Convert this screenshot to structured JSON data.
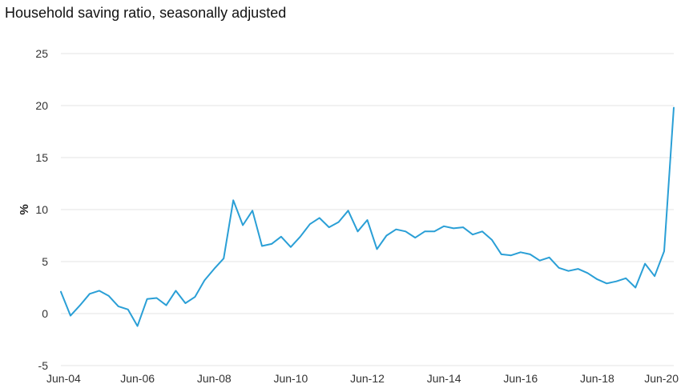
{
  "chart_data": {
    "type": "line",
    "title": "Household saving ratio, seasonally adjusted",
    "xlabel": "",
    "ylabel": "%",
    "ylim": [
      -5,
      25
    ],
    "yticks": [
      -5,
      0,
      5,
      10,
      15,
      20,
      25
    ],
    "xtick_labels": [
      "Jun-04",
      "Jun-06",
      "Jun-08",
      "Jun-10",
      "Jun-12",
      "Jun-14",
      "Jun-16",
      "Jun-18",
      "Jun-20"
    ],
    "grid": true,
    "legend": "none",
    "color": "#2a9fd6",
    "x": [
      "Jun-04",
      "Sep-04",
      "Dec-04",
      "Mar-05",
      "Jun-05",
      "Sep-05",
      "Dec-05",
      "Mar-06",
      "Jun-06",
      "Sep-06",
      "Dec-06",
      "Mar-07",
      "Jun-07",
      "Sep-07",
      "Dec-07",
      "Mar-08",
      "Jun-08",
      "Sep-08",
      "Dec-08",
      "Mar-09",
      "Jun-09",
      "Sep-09",
      "Dec-09",
      "Mar-10",
      "Jun-10",
      "Sep-10",
      "Dec-10",
      "Mar-11",
      "Jun-11",
      "Sep-11",
      "Dec-11",
      "Mar-12",
      "Jun-12",
      "Sep-12",
      "Dec-12",
      "Mar-13",
      "Jun-13",
      "Sep-13",
      "Dec-13",
      "Mar-14",
      "Jun-14",
      "Sep-14",
      "Dec-14",
      "Mar-15",
      "Jun-15",
      "Sep-15",
      "Dec-15",
      "Mar-16",
      "Jun-16",
      "Sep-16",
      "Dec-16",
      "Mar-17",
      "Jun-17",
      "Sep-17",
      "Dec-17",
      "Mar-18",
      "Jun-18",
      "Sep-18",
      "Dec-18",
      "Mar-19",
      "Jun-19",
      "Sep-19",
      "Dec-19",
      "Mar-20",
      "Jun-20"
    ],
    "series": [
      {
        "values": [
          2.1,
          -0.2,
          0.8,
          1.9,
          2.2,
          1.7,
          0.7,
          0.4,
          -1.2,
          1.4,
          1.5,
          0.8,
          2.2,
          1.0,
          1.6,
          3.2,
          4.3,
          5.3,
          10.9,
          8.5,
          9.9,
          6.5,
          6.7,
          7.4,
          6.4,
          7.4,
          8.6,
          9.2,
          8.3,
          8.8,
          9.9,
          7.9,
          9.0,
          6.2,
          7.5,
          8.1,
          7.9,
          7.3,
          7.9,
          7.9,
          8.4,
          8.2,
          8.3,
          7.6,
          7.9,
          7.1,
          5.7,
          5.6,
          5.9,
          5.7,
          5.1,
          5.4,
          4.4,
          4.1,
          4.3,
          3.9,
          3.3,
          2.9,
          3.1,
          3.4,
          2.5,
          4.8,
          3.6,
          6.0,
          19.8
        ]
      }
    ]
  }
}
